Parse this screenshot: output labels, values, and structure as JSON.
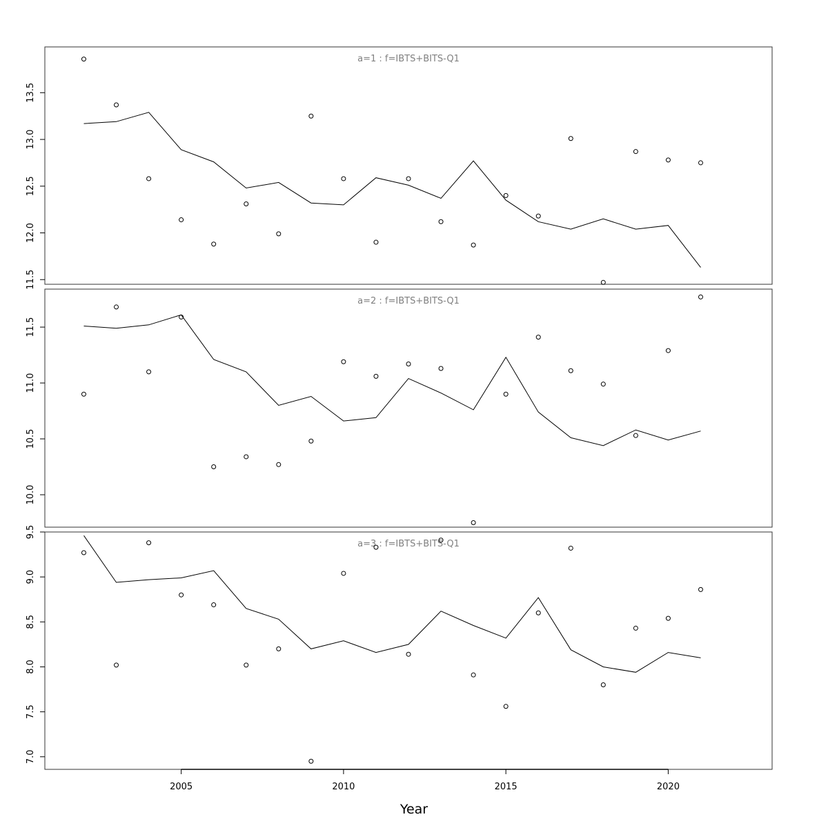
{
  "chart_data": {
    "type": "scatter",
    "xlabel": "Year",
    "x_ticks": [
      2005,
      2010,
      2015,
      2020
    ],
    "xlim": [
      2000.8,
      2023.2
    ],
    "years": [
      2002,
      2003,
      2004,
      2005,
      2006,
      2007,
      2008,
      2009,
      2010,
      2011,
      2012,
      2013,
      2014,
      2015,
      2016,
      2017,
      2018,
      2019,
      2020,
      2021
    ],
    "panels": [
      {
        "title": "a=1  :  f=IBTS+BITS-Q1",
        "ylim": [
          11.45,
          13.99
        ],
        "y_ticks": [
          "11.5",
          "12.0",
          "12.5",
          "13.0",
          "13.5"
        ],
        "observed": [
          13.86,
          13.37,
          12.58,
          12.14,
          11.88,
          12.31,
          11.99,
          13.25,
          12.58,
          11.9,
          12.58,
          12.12,
          11.87,
          12.4,
          12.18,
          13.01,
          11.47,
          12.87,
          12.78,
          12.75
        ],
        "fitted": [
          13.17,
          13.19,
          13.29,
          12.89,
          12.76,
          12.48,
          12.54,
          12.32,
          12.3,
          12.59,
          12.51,
          12.37,
          12.77,
          12.35,
          12.12,
          12.04,
          12.15,
          12.04,
          12.08,
          11.63
        ]
      },
      {
        "title": "a=2  :  f=IBTS+BITS-Q1",
        "ylim": [
          9.71,
          11.84
        ],
        "y_ticks": [
          "10.0",
          "10.5",
          "11.0",
          "11.5"
        ],
        "observed": [
          10.9,
          11.68,
          11.1,
          11.59,
          10.25,
          10.34,
          10.27,
          10.48,
          11.19,
          11.06,
          11.17,
          11.13,
          9.75,
          10.9,
          11.41,
          11.11,
          10.99,
          10.53,
          11.29,
          11.77
        ],
        "fitted": [
          11.51,
          11.49,
          11.52,
          11.61,
          11.21,
          11.1,
          10.8,
          10.88,
          10.66,
          10.69,
          11.04,
          10.91,
          10.76,
          11.23,
          10.74,
          10.51,
          10.44,
          10.58,
          10.49,
          10.57
        ]
      },
      {
        "title": "a=3  :  f=IBTS+BITS-Q1",
        "ylim": [
          6.86,
          9.5
        ],
        "y_ticks": [
          "7.0",
          "7.5",
          "8.0",
          "8.5",
          "9.0",
          "9.5"
        ],
        "observed": [
          9.27,
          8.02,
          9.38,
          8.8,
          8.69,
          8.02,
          8.2,
          6.95,
          9.04,
          9.33,
          8.14,
          9.41,
          7.91,
          7.56,
          8.6,
          9.32,
          7.8,
          8.43,
          8.54,
          8.86
        ],
        "fitted": [
          9.46,
          8.94,
          8.97,
          8.99,
          9.07,
          8.65,
          8.53,
          8.2,
          8.29,
          8.16,
          8.25,
          8.62,
          8.46,
          8.32,
          8.77,
          8.19,
          8.0,
          7.94,
          8.16,
          8.1
        ]
      }
    ]
  }
}
